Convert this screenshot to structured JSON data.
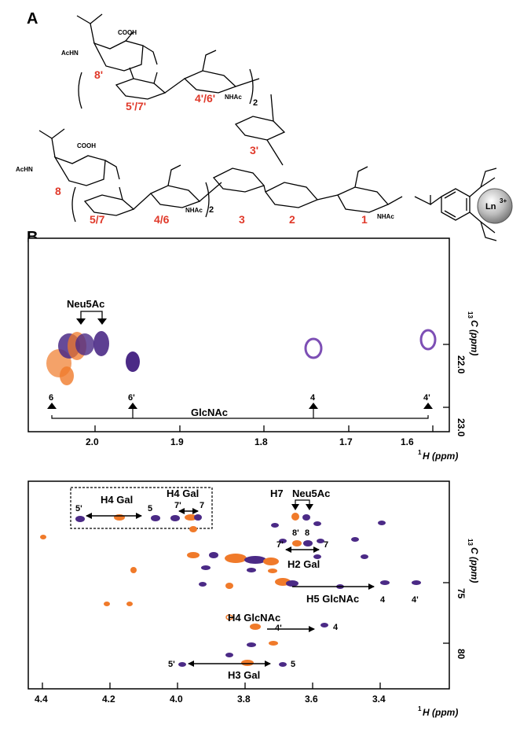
{
  "figure": {
    "panel_a_label": "A",
    "panel_b_label": "B"
  },
  "structure": {
    "residue_labels": [
      "8'",
      "5'/7'",
      "4'/6'",
      "3'",
      "8",
      "5/7",
      "4/6",
      "3",
      "2",
      "1"
    ],
    "groups": {
      "acnh_top": "AcHN",
      "acnh_bottom": "AcHN",
      "cooh_top": "COOH",
      "cooh_bottom": "COOH",
      "nhac_top": "NHAc",
      "nhac_bottom": "NHAc",
      "nhac_1": "NHAc",
      "repeat_top": "2",
      "repeat_bottom": "2",
      "metal": "Ln",
      "metal_charge": "3+"
    }
  },
  "spectra": {
    "top": {
      "x_ticks": [
        "2.0",
        "1.9",
        "1.8",
        "1.7",
        "1.6"
      ],
      "y_ticks": [
        "22.0",
        "23.0"
      ],
      "x_label_sup": "1",
      "x_label": "H (ppm)",
      "y_label_sup": "13",
      "y_label": "C (ppm)",
      "annotations": {
        "neu5ac": "Neu5Ac",
        "glcnac": "GlcNAc",
        "m6": "6",
        "m6p": "6'",
        "m4": "4",
        "m4p": "4'"
      }
    },
    "bottom": {
      "x_ticks": [
        "4.4",
        "4.2",
        "4.0",
        "3.8",
        "3.6",
        "3.4"
      ],
      "y_ticks": [
        "75",
        "80"
      ],
      "x_label_sup": "1",
      "x_label": "H (ppm)",
      "y_label_sup": "13",
      "y_label": "C (ppm)",
      "annotations": {
        "h4gal_a": "H4 Gal",
        "h4gal_b": "H4 Gal",
        "h7": "H7",
        "neu5ac": "Neu5Ac",
        "h2gal": "H2 Gal",
        "h5glcnac": "H5 GlcNAc",
        "h4glcnac": "H4 GlcNAc",
        "h3gal": "H3 Gal",
        "l5p_a": "5'",
        "l5_a": "5",
        "l7p_a": "7'",
        "l7_a": "7",
        "l8p": "8'",
        "l8": "8",
        "l7p_b": "7'",
        "l7_b": "7",
        "l4_a": "4",
        "l4p_a": "4'",
        "l4p_b": "4'",
        "l4_b": "4",
        "l5p_b": "5'",
        "l5_b": "5"
      }
    }
  },
  "colors": {
    "red_label": "#e0392a",
    "purple": "#4b2a86",
    "orange": "#f07a2a",
    "violet": "#7d4fb5"
  }
}
